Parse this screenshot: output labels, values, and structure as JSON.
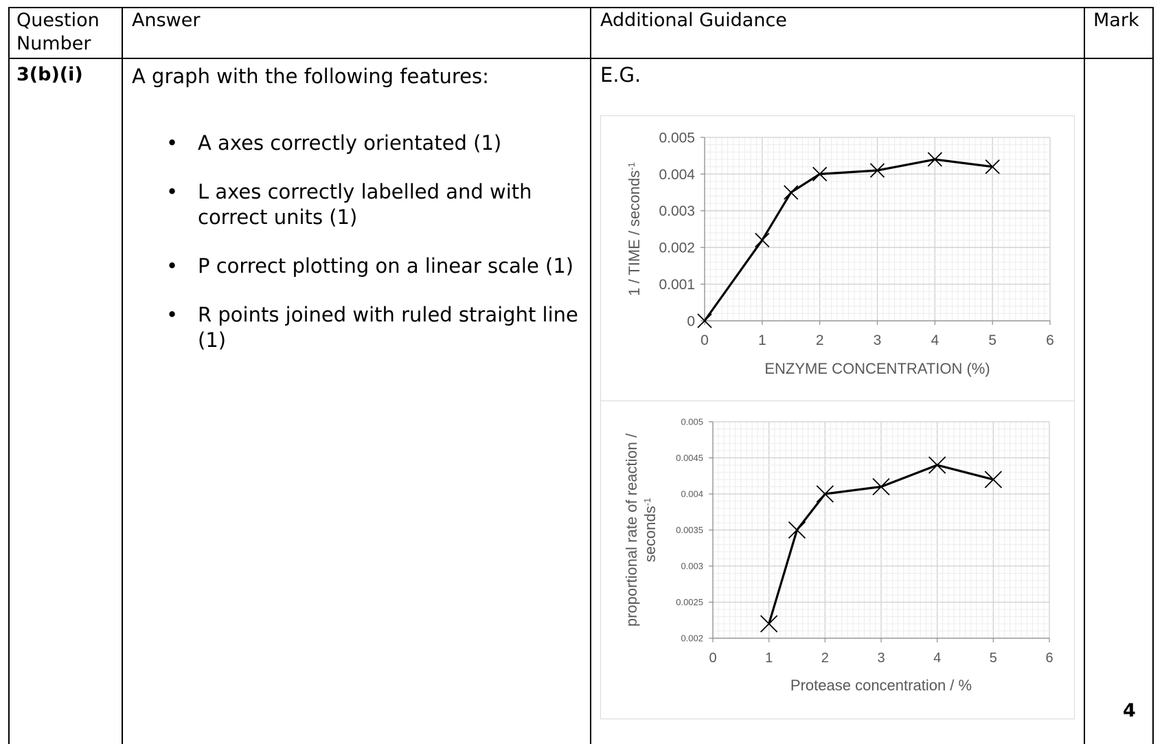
{
  "table": {
    "headers": {
      "question_number": "Question Number",
      "answer": "Answer",
      "guidance": "Additional Guidance",
      "mark": "Mark"
    },
    "row": {
      "question_number": "3(b)(i)",
      "answer_intro": "A graph with the following features:",
      "criteria": [
        "A axes correctly orientated (1)",
        "L axes correctly labelled and with correct units (1)",
        "P correct plotting on a linear scale (1)",
        "R points joined with ruled straight line (1)"
      ],
      "guidance_intro": "E.G.",
      "mark": "4"
    }
  },
  "chart_data": [
    {
      "type": "line",
      "x": [
        0,
        1,
        1.5,
        2,
        3,
        4,
        5
      ],
      "series": [
        {
          "values": [
            0,
            0.0022,
            0.0035,
            0.004,
            0.0041,
            0.0044,
            0.0042
          ]
        }
      ],
      "xlabel": "ENZYME CONCENTRATION (%)",
      "ylabel": "1 / TIME / seconds",
      "ylabel_sup": "-1",
      "xlim": [
        0,
        6
      ],
      "ylim": [
        0,
        0.005
      ],
      "xticks": [
        "0",
        "1",
        "2",
        "3",
        "4",
        "5",
        "6"
      ],
      "yticks": [
        "0",
        "0.001",
        "0.002",
        "0.003",
        "0.004",
        "0.005"
      ],
      "marker": "x",
      "grid": true
    },
    {
      "type": "line",
      "x": [
        1,
        1.5,
        2,
        3,
        4,
        5
      ],
      "series": [
        {
          "values": [
            0.0022,
            0.0035,
            0.004,
            0.0041,
            0.0044,
            0.0042
          ]
        }
      ],
      "xlabel": "Protease concentration / %",
      "ylabel_line1": "proportional rate of reaction /",
      "ylabel_line2": "seconds",
      "ylabel_sup": "-1",
      "xlim": [
        0,
        6
      ],
      "ylim": [
        0.002,
        0.005
      ],
      "xticks": [
        "0",
        "1",
        "2",
        "3",
        "4",
        "5",
        "6"
      ],
      "yticks": [
        "0.002",
        "0.0025",
        "0.003",
        "0.0035",
        "0.004",
        "0.0045",
        "0.005"
      ],
      "marker": "x",
      "grid": true
    }
  ]
}
